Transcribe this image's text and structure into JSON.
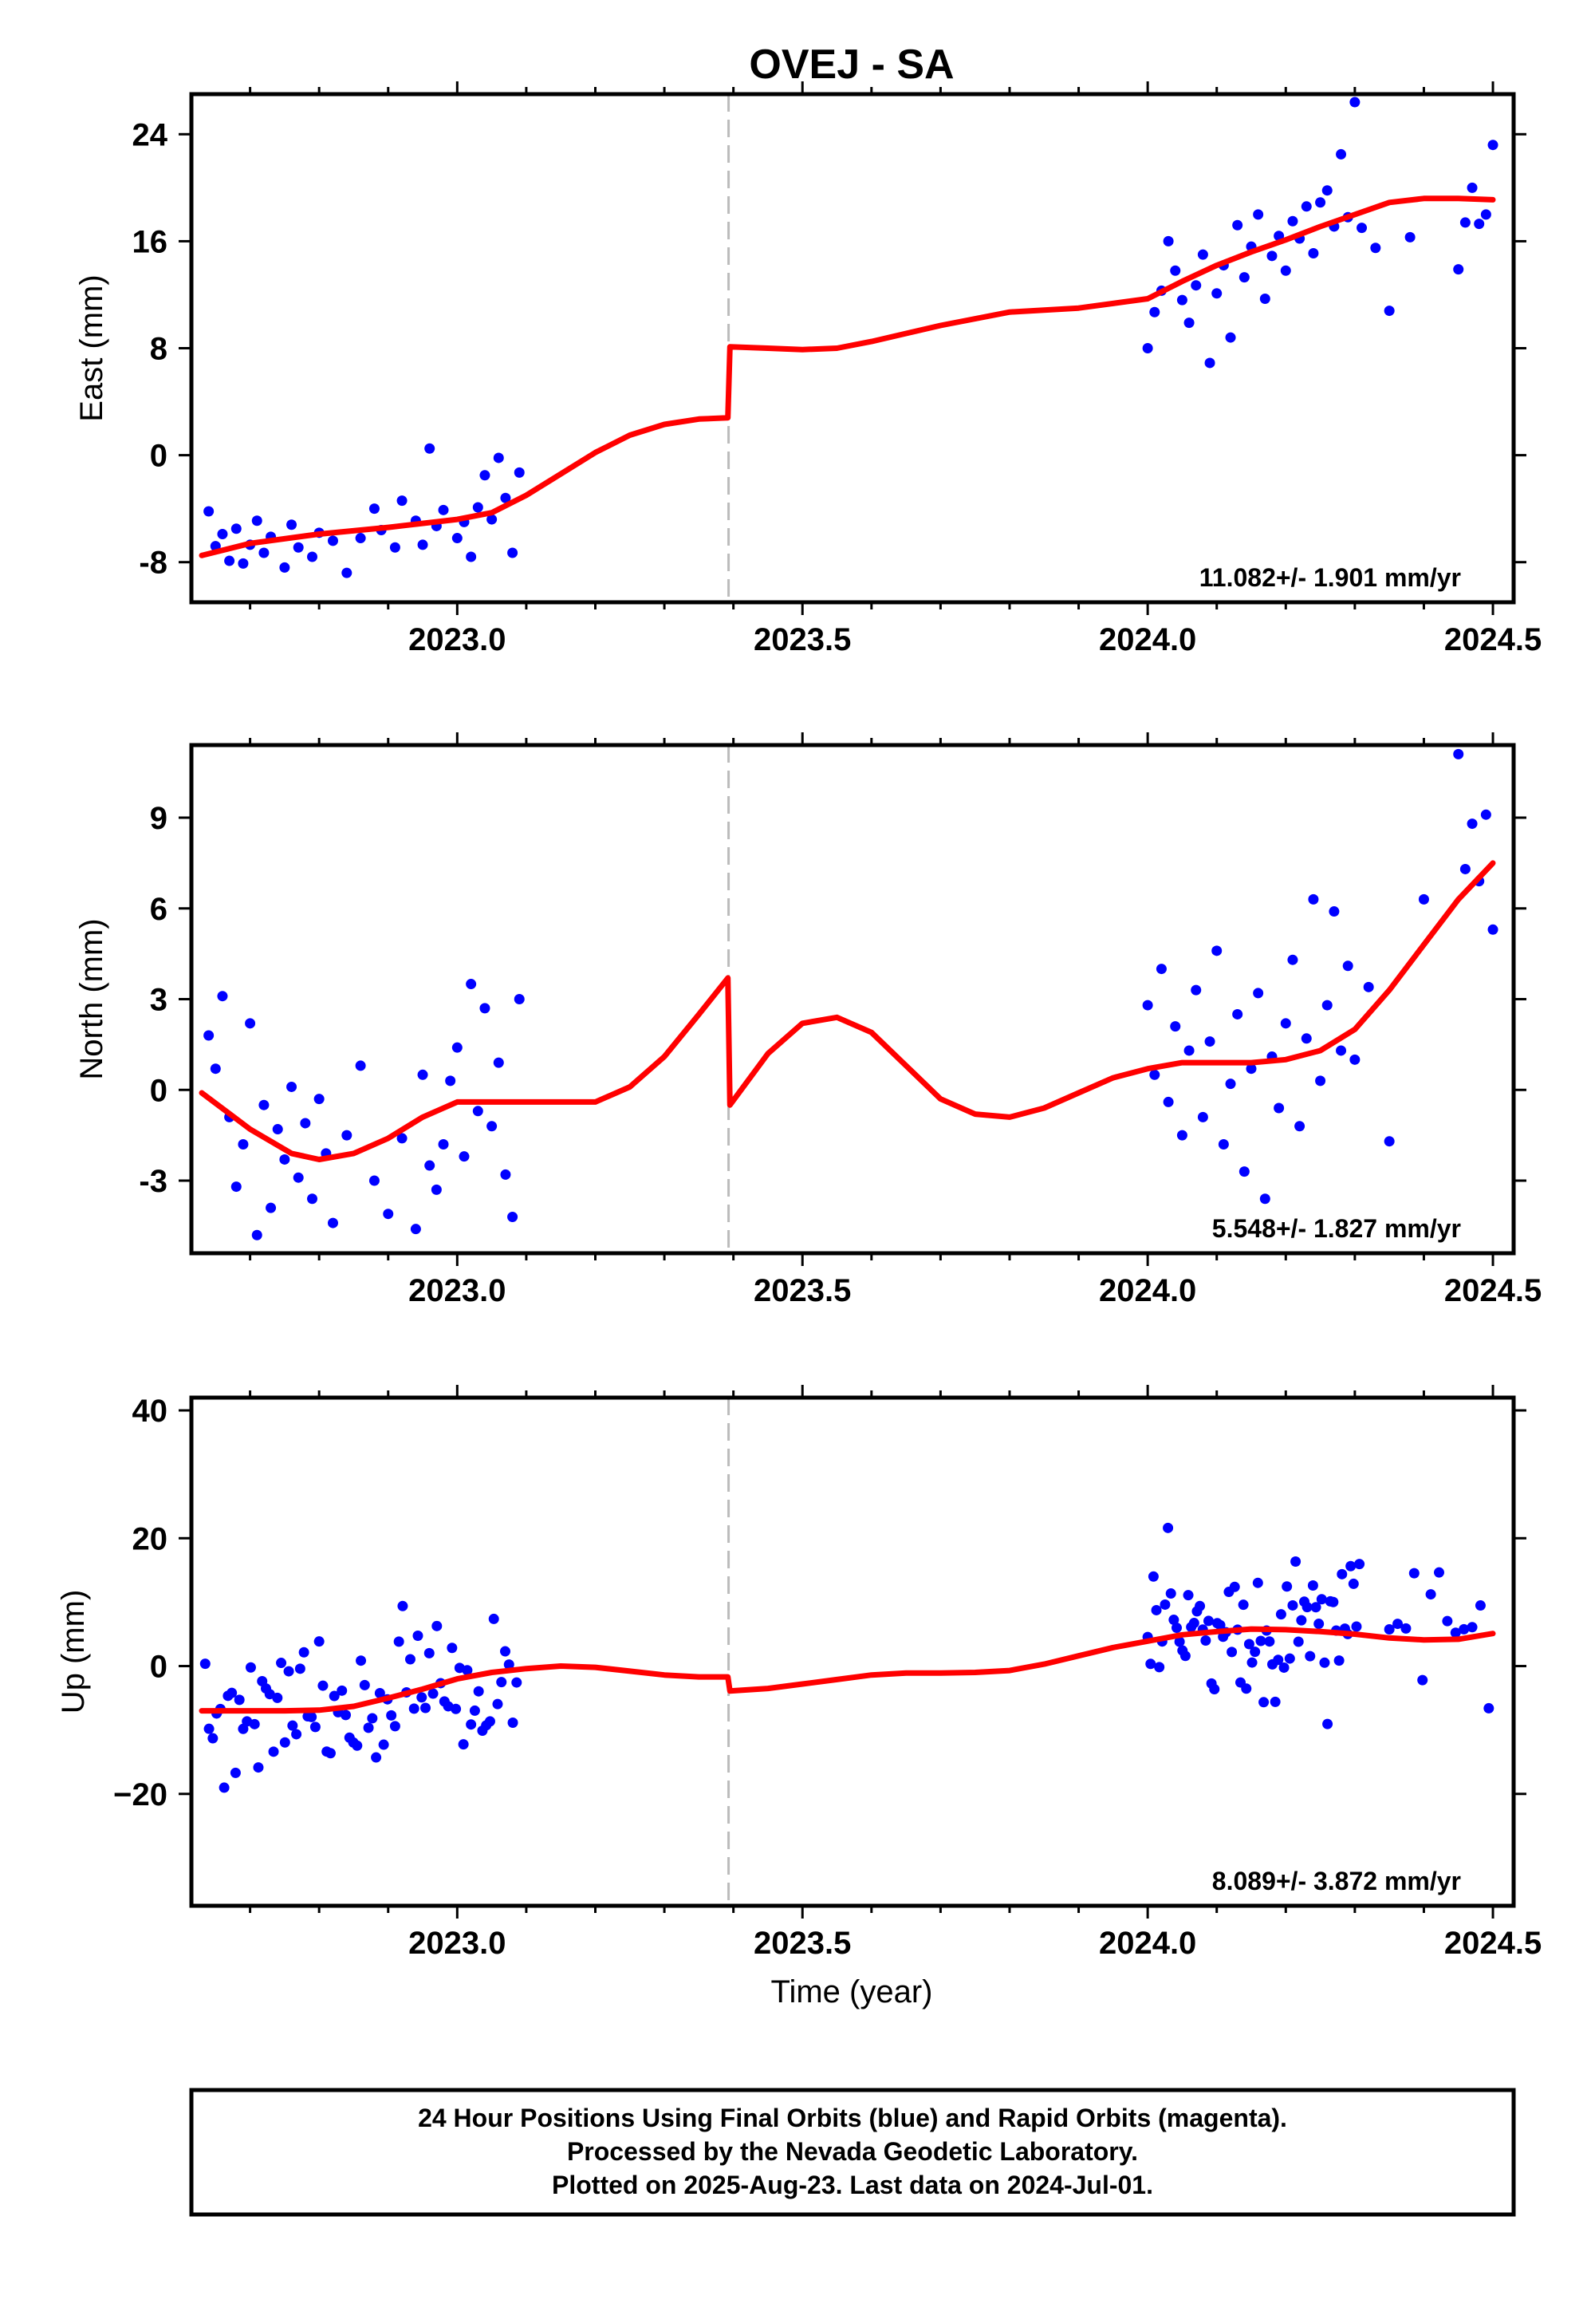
{
  "chart_data": {
    "title": "OVEJ - SA",
    "xlabel": "Time (year)",
    "xlim": [
      2022.615,
      2024.53
    ],
    "x_ticks": [
      2023.0,
      2023.5,
      2024.0,
      2024.5
    ],
    "x_tick_labels": [
      "2023.0",
      "2023.5",
      "2024.0",
      "2024.5"
    ],
    "minor_x_ticks": [
      2022.7,
      2022.8,
      2022.9,
      2023.1,
      2023.2,
      2023.3,
      2023.4,
      2023.6,
      2023.7,
      2023.8,
      2023.9,
      2024.1,
      2024.2,
      2024.3,
      2024.4
    ],
    "break_epoch": 2023.393,
    "point_color": "#0000ff",
    "model_color": "#ff0000",
    "break_line_color": "#bbbbbb",
    "panels": [
      {
        "type": "scatter",
        "component": "east",
        "ylabel": "East (mm)",
        "ylim": [
          -11,
          27
        ],
        "y_ticks": [
          -8,
          0,
          8,
          16,
          24
        ],
        "y_tick_labels": [
          "-8",
          "0",
          "8",
          "16",
          "24"
        ],
        "rate": "11.082+/- 1.901 mm/yr",
        "model_x": [
          2022.63,
          2022.7,
          2022.8,
          2022.9,
          2023.0,
          2023.05,
          2023.1,
          2023.15,
          2023.2,
          2023.25,
          2023.3,
          2023.35,
          2023.392,
          2023.395,
          2023.45,
          2023.5,
          2023.55,
          2023.6,
          2023.7,
          2023.8,
          2023.9,
          2024.0,
          2024.05,
          2024.1,
          2024.15,
          2024.2,
          2024.25,
          2024.3,
          2024.35,
          2024.4,
          2024.45,
          2024.5
        ],
        "model_y": [
          -7.5,
          -6.6,
          -5.9,
          -5.4,
          -4.8,
          -4.3,
          -3.0,
          -1.4,
          0.2,
          1.5,
          2.3,
          2.7,
          2.8,
          8.1,
          8.0,
          7.9,
          8.0,
          8.5,
          9.7,
          10.7,
          11.0,
          11.7,
          13.0,
          14.2,
          15.2,
          16.1,
          17.1,
          18.0,
          18.9,
          19.2,
          19.2,
          19.1
        ],
        "points": [
          [
            2022.64,
            -4.2
          ],
          [
            2022.65,
            -6.8
          ],
          [
            2022.66,
            -5.9
          ],
          [
            2022.67,
            -7.9
          ],
          [
            2022.68,
            -5.5
          ],
          [
            2022.69,
            -8.1
          ],
          [
            2022.7,
            -6.7
          ],
          [
            2022.71,
            -4.9
          ],
          [
            2022.72,
            -7.3
          ],
          [
            2022.73,
            -6.1
          ],
          [
            2022.75,
            -8.4
          ],
          [
            2022.76,
            -5.2
          ],
          [
            2022.77,
            -6.9
          ],
          [
            2022.79,
            -7.6
          ],
          [
            2022.8,
            -5.8
          ],
          [
            2022.82,
            -6.4
          ],
          [
            2022.84,
            -8.8
          ],
          [
            2022.86,
            -6.2
          ],
          [
            2022.88,
            -4.0
          ],
          [
            2022.89,
            -5.6
          ],
          [
            2022.91,
            -6.9
          ],
          [
            2022.92,
            -3.4
          ],
          [
            2022.94,
            -4.9
          ],
          [
            2022.95,
            -6.7
          ],
          [
            2022.96,
            0.5
          ],
          [
            2022.97,
            -5.3
          ],
          [
            2022.98,
            -4.1
          ],
          [
            2023.0,
            -6.2
          ],
          [
            2023.01,
            -5.0
          ],
          [
            2023.02,
            -7.6
          ],
          [
            2023.03,
            -3.9
          ],
          [
            2023.04,
            -1.5
          ],
          [
            2023.05,
            -4.8
          ],
          [
            2023.06,
            -0.2
          ],
          [
            2023.07,
            -3.2
          ],
          [
            2023.08,
            -7.3
          ],
          [
            2023.09,
            -1.3
          ],
          [
            2024.0,
            8.0
          ],
          [
            2024.01,
            10.7
          ],
          [
            2024.02,
            12.3
          ],
          [
            2024.03,
            16.0
          ],
          [
            2024.04,
            13.8
          ],
          [
            2024.05,
            11.6
          ],
          [
            2024.06,
            9.9
          ],
          [
            2024.07,
            12.7
          ],
          [
            2024.08,
            15.0
          ],
          [
            2024.09,
            6.9
          ],
          [
            2024.1,
            12.1
          ],
          [
            2024.11,
            14.2
          ],
          [
            2024.12,
            8.8
          ],
          [
            2024.13,
            17.2
          ],
          [
            2024.14,
            13.3
          ],
          [
            2024.15,
            15.6
          ],
          [
            2024.16,
            18.0
          ],
          [
            2024.17,
            11.7
          ],
          [
            2024.18,
            14.9
          ],
          [
            2024.19,
            16.4
          ],
          [
            2024.2,
            13.8
          ],
          [
            2024.21,
            17.5
          ],
          [
            2024.22,
            16.2
          ],
          [
            2024.23,
            18.6
          ],
          [
            2024.24,
            15.1
          ],
          [
            2024.25,
            18.9
          ],
          [
            2024.26,
            19.8
          ],
          [
            2024.27,
            17.1
          ],
          [
            2024.28,
            22.5
          ],
          [
            2024.29,
            17.8
          ],
          [
            2024.3,
            26.4
          ],
          [
            2024.31,
            17.0
          ],
          [
            2024.33,
            15.5
          ],
          [
            2024.35,
            10.8
          ],
          [
            2024.38,
            16.3
          ],
          [
            2024.45,
            13.9
          ],
          [
            2024.46,
            17.4
          ],
          [
            2024.47,
            20.0
          ],
          [
            2024.48,
            17.3
          ],
          [
            2024.49,
            18.0
          ],
          [
            2024.5,
            23.2
          ]
        ]
      },
      {
        "type": "scatter",
        "component": "north",
        "ylabel": "North (mm)",
        "ylim": [
          -5.4,
          11.4
        ],
        "y_ticks": [
          -3,
          0,
          3,
          6,
          9
        ],
        "y_tick_labels": [
          "-3",
          "0",
          "3",
          "6",
          "9"
        ],
        "rate": "5.548+/- 1.827 mm/yr",
        "model_x": [
          2022.63,
          2022.7,
          2022.76,
          2022.8,
          2022.85,
          2022.9,
          2022.95,
          2023.0,
          2023.05,
          2023.1,
          2023.15,
          2023.2,
          2023.25,
          2023.3,
          2023.35,
          2023.392,
          2023.395,
          2023.45,
          2023.5,
          2023.55,
          2023.6,
          2023.65,
          2023.7,
          2023.75,
          2023.8,
          2023.85,
          2023.9,
          2023.95,
          2024.0,
          2024.05,
          2024.1,
          2024.15,
          2024.2,
          2024.25,
          2024.3,
          2024.35,
          2024.4,
          2024.45,
          2024.5
        ],
        "model_y": [
          -0.1,
          -1.3,
          -2.1,
          -2.3,
          -2.1,
          -1.6,
          -0.9,
          -0.4,
          -0.4,
          -0.4,
          -0.4,
          -0.4,
          0.1,
          1.1,
          2.5,
          3.7,
          -0.5,
          1.2,
          2.2,
          2.4,
          1.9,
          0.8,
          -0.3,
          -0.8,
          -0.9,
          -0.6,
          -0.1,
          0.4,
          0.7,
          0.9,
          0.9,
          0.9,
          1.0,
          1.3,
          2.0,
          3.3,
          4.8,
          6.3,
          7.5
        ],
        "points": [
          [
            2022.64,
            1.8
          ],
          [
            2022.65,
            0.7
          ],
          [
            2022.66,
            3.1
          ],
          [
            2022.67,
            -0.9
          ],
          [
            2022.68,
            -3.2
          ],
          [
            2022.69,
            -1.8
          ],
          [
            2022.7,
            2.2
          ],
          [
            2022.71,
            -4.8
          ],
          [
            2022.72,
            -0.5
          ],
          [
            2022.73,
            -3.9
          ],
          [
            2022.74,
            -1.3
          ],
          [
            2022.75,
            -2.3
          ],
          [
            2022.76,
            0.1
          ],
          [
            2022.77,
            -2.9
          ],
          [
            2022.78,
            -1.1
          ],
          [
            2022.79,
            -3.6
          ],
          [
            2022.8,
            -0.3
          ],
          [
            2022.81,
            -2.1
          ],
          [
            2022.82,
            -4.4
          ],
          [
            2022.84,
            -1.5
          ],
          [
            2022.86,
            0.8
          ],
          [
            2022.88,
            -3.0
          ],
          [
            2022.9,
            -4.1
          ],
          [
            2022.92,
            -1.6
          ],
          [
            2022.94,
            -4.6
          ],
          [
            2022.95,
            0.5
          ],
          [
            2022.96,
            -2.5
          ],
          [
            2022.97,
            -3.3
          ],
          [
            2022.98,
            -1.8
          ],
          [
            2022.99,
            0.3
          ],
          [
            2023.0,
            1.4
          ],
          [
            2023.01,
            -2.2
          ],
          [
            2023.02,
            3.5
          ],
          [
            2023.03,
            -0.7
          ],
          [
            2023.04,
            2.7
          ],
          [
            2023.05,
            -1.2
          ],
          [
            2023.06,
            0.9
          ],
          [
            2023.07,
            -2.8
          ],
          [
            2023.08,
            -4.2
          ],
          [
            2023.09,
            3.0
          ],
          [
            2024.0,
            2.8
          ],
          [
            2024.01,
            0.5
          ],
          [
            2024.02,
            4.0
          ],
          [
            2024.03,
            -0.4
          ],
          [
            2024.04,
            2.1
          ],
          [
            2024.05,
            -1.5
          ],
          [
            2024.06,
            1.3
          ],
          [
            2024.07,
            3.3
          ],
          [
            2024.08,
            -0.9
          ],
          [
            2024.09,
            1.6
          ],
          [
            2024.1,
            4.6
          ],
          [
            2024.11,
            -1.8
          ],
          [
            2024.12,
            0.2
          ],
          [
            2024.13,
            2.5
          ],
          [
            2024.14,
            -2.7
          ],
          [
            2024.15,
            0.7
          ],
          [
            2024.16,
            3.2
          ],
          [
            2024.17,
            -3.6
          ],
          [
            2024.18,
            1.1
          ],
          [
            2024.19,
            -0.6
          ],
          [
            2024.2,
            2.2
          ],
          [
            2024.21,
            4.3
          ],
          [
            2024.22,
            -1.2
          ],
          [
            2024.23,
            1.7
          ],
          [
            2024.24,
            6.3
          ],
          [
            2024.25,
            0.3
          ],
          [
            2024.26,
            2.8
          ],
          [
            2024.27,
            5.9
          ],
          [
            2024.28,
            1.3
          ],
          [
            2024.29,
            4.1
          ],
          [
            2024.3,
            1.0
          ],
          [
            2024.32,
            3.4
          ],
          [
            2024.35,
            -1.7
          ],
          [
            2024.4,
            6.3
          ],
          [
            2024.45,
            11.1
          ],
          [
            2024.46,
            7.3
          ],
          [
            2024.47,
            8.8
          ],
          [
            2024.48,
            6.9
          ],
          [
            2024.49,
            9.1
          ],
          [
            2024.5,
            5.3
          ]
        ]
      },
      {
        "type": "scatter",
        "component": "up",
        "ylabel": "Up (mm)",
        "ylim": [
          -37.5,
          42
        ],
        "y_ticks": [
          -20,
          0,
          20,
          40
        ],
        "y_tick_labels": [
          "−20",
          "0",
          "20",
          "40"
        ],
        "rate": "8.089+/- 3.872 mm/yr",
        "model_x": [
          2022.63,
          2022.7,
          2022.75,
          2022.8,
          2022.85,
          2022.9,
          2022.95,
          2023.0,
          2023.05,
          2023.1,
          2023.15,
          2023.2,
          2023.25,
          2023.3,
          2023.35,
          2023.392,
          2023.395,
          2023.45,
          2023.5,
          2023.55,
          2023.6,
          2023.65,
          2023.7,
          2023.75,
          2023.8,
          2023.85,
          2023.9,
          2023.95,
          2024.0,
          2024.05,
          2024.1,
          2024.15,
          2024.2,
          2024.25,
          2024.3,
          2024.35,
          2024.4,
          2024.45,
          2024.5
        ],
        "model_y": [
          -7.0,
          -7.0,
          -7.0,
          -6.9,
          -6.3,
          -5.0,
          -3.6,
          -2.0,
          -1.0,
          -0.4,
          0.0,
          -0.2,
          -0.8,
          -1.4,
          -1.7,
          -1.7,
          -3.9,
          -3.5,
          -2.8,
          -2.1,
          -1.4,
          -1.1,
          -1.1,
          -1.0,
          -0.7,
          0.3,
          1.6,
          2.9,
          3.9,
          4.9,
          5.4,
          5.8,
          5.7,
          5.4,
          5.0,
          4.4,
          4.1,
          4.2,
          5.1
        ]
      }
    ]
  },
  "footer": {
    "line1": "24 Hour Positions Using Final Orbits (blue) and Rapid Orbits (magenta).",
    "line2": "Processed by the Nevada Geodetic Laboratory.",
    "line3": "Plotted on 2025-Aug-23. Last data on 2024-Jul-01."
  }
}
